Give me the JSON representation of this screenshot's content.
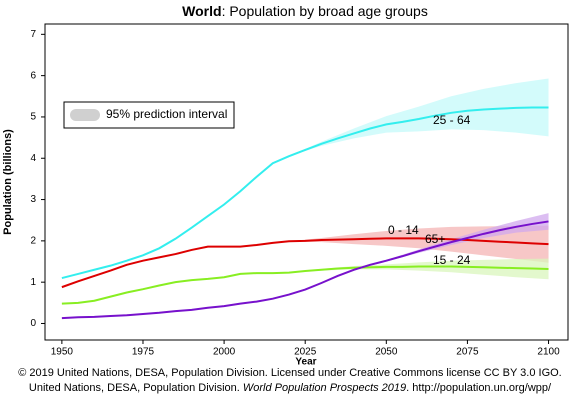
{
  "chart_data": {
    "type": "line",
    "title_parts": [
      "World",
      ": Population by broad age groups"
    ],
    "x_label": "Year",
    "y_label": "Population (billions)",
    "legend_label": "95% prediction interval",
    "footer": [
      "© 2019 United Nations, DESA, Population Division. Licensed under Creative Commons license CC BY 3.0 IGO.",
      [
        "United Nations, DESA, Population Division. ",
        "World Population Prospects 2019",
        ". http://population.un.org/wpp/"
      ]
    ],
    "x": [
      1950,
      1955,
      1960,
      1965,
      1970,
      1975,
      1980,
      1985,
      1990,
      1995,
      2000,
      2005,
      2010,
      2015,
      2020,
      2025,
      2030,
      2035,
      2040,
      2045,
      2050,
      2055,
      2060,
      2065,
      2070,
      2075,
      2080,
      2085,
      2090,
      2095,
      2100
    ],
    "xlim": [
      1944.8,
      2106
    ],
    "xticks": [
      1950,
      1975,
      2000,
      2025,
      2050,
      2075,
      2100
    ],
    "ylim": [
      -0.4,
      7.25
    ],
    "yticks": [
      0,
      1,
      2,
      3,
      4,
      5,
      6,
      7
    ],
    "series": [
      {
        "name": "25 - 64",
        "color": "#33eeee",
        "band_color": "#c4fafa",
        "values": [
          1.1,
          1.2,
          1.3,
          1.4,
          1.52,
          1.65,
          1.82,
          2.05,
          2.32,
          2.6,
          2.88,
          3.2,
          3.55,
          3.88,
          4.05,
          4.2,
          4.35,
          4.48,
          4.6,
          4.72,
          4.82,
          4.88,
          4.95,
          5.03,
          5.1,
          5.15,
          5.18,
          5.2,
          5.22,
          5.23,
          5.23
        ],
        "band": {
          "x": [
            2020,
            2030,
            2040,
            2050,
            2060,
            2070,
            2080,
            2090,
            2100
          ],
          "lower": [
            4.05,
            4.3,
            4.48,
            4.62,
            4.65,
            4.7,
            4.68,
            4.62,
            4.53
          ],
          "upper": [
            4.05,
            4.4,
            4.72,
            5.02,
            5.25,
            5.5,
            5.68,
            5.82,
            5.93
          ]
        }
      },
      {
        "name": "0 - 14",
        "color": "#dd0000",
        "band_color": "#f4b4b4",
        "values": [
          0.88,
          1.02,
          1.15,
          1.28,
          1.42,
          1.52,
          1.6,
          1.68,
          1.78,
          1.86,
          1.86,
          1.86,
          1.9,
          1.95,
          1.99,
          2.0,
          2.02,
          2.03,
          2.04,
          2.05,
          2.06,
          2.06,
          2.06,
          2.05,
          2.04,
          2.02,
          2.0,
          1.98,
          1.96,
          1.94,
          1.92
        ],
        "band": {
          "x": [
            2020,
            2030,
            2040,
            2050,
            2060,
            2070,
            2080,
            2090,
            2100
          ],
          "lower": [
            1.99,
            1.97,
            1.92,
            1.88,
            1.82,
            1.74,
            1.65,
            1.56,
            1.47
          ],
          "upper": [
            1.99,
            2.07,
            2.16,
            2.24,
            2.3,
            2.34,
            2.35,
            2.36,
            2.37
          ]
        }
      },
      {
        "name": "15 - 24",
        "color": "#88ee22",
        "band_color": "#daf5bc",
        "values": [
          0.48,
          0.5,
          0.55,
          0.65,
          0.75,
          0.83,
          0.92,
          1.0,
          1.05,
          1.08,
          1.12,
          1.2,
          1.22,
          1.22,
          1.23,
          1.27,
          1.3,
          1.33,
          1.35,
          1.36,
          1.37,
          1.37,
          1.38,
          1.38,
          1.38,
          1.37,
          1.36,
          1.35,
          1.34,
          1.33,
          1.32
        ],
        "band": {
          "x": [
            2020,
            2030,
            2040,
            2050,
            2060,
            2070,
            2080,
            2090,
            2100
          ],
          "lower": [
            1.23,
            1.28,
            1.31,
            1.31,
            1.28,
            1.24,
            1.18,
            1.12,
            1.07
          ],
          "upper": [
            1.23,
            1.32,
            1.39,
            1.43,
            1.48,
            1.52,
            1.54,
            1.56,
            1.57
          ]
        }
      },
      {
        "name": "65+",
        "color": "#7711cc",
        "band_color": "#d0a8ee",
        "values": [
          0.13,
          0.15,
          0.16,
          0.18,
          0.2,
          0.23,
          0.26,
          0.3,
          0.33,
          0.38,
          0.42,
          0.48,
          0.53,
          0.6,
          0.7,
          0.82,
          0.98,
          1.15,
          1.3,
          1.42,
          1.52,
          1.63,
          1.75,
          1.86,
          1.97,
          2.07,
          2.17,
          2.26,
          2.34,
          2.41,
          2.47
        ],
        "band": {
          "x": [
            2020,
            2030,
            2040,
            2050,
            2060,
            2070,
            2080,
            2090,
            2100
          ],
          "lower": [
            0.7,
            0.98,
            1.29,
            1.5,
            1.71,
            1.9,
            2.07,
            2.2,
            2.27
          ],
          "upper": [
            0.7,
            0.98,
            1.31,
            1.54,
            1.79,
            2.04,
            2.27,
            2.48,
            2.67
          ]
        }
      }
    ]
  }
}
